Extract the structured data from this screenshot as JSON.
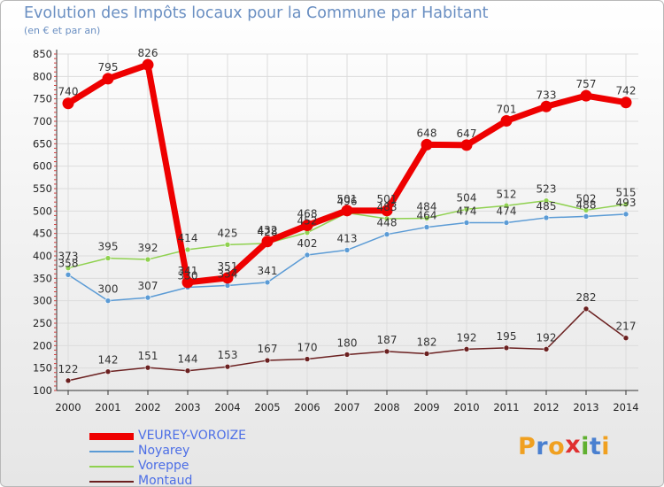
{
  "title": "Evolution des Impôts locaux pour la Commune par Habitant",
  "subtitle": "(en € et par an)",
  "logo_text": "Proxiti",
  "colors": {
    "title": "#6a8fc2",
    "legend_text": "#4c6ee6",
    "grid": "#dcdcdc",
    "axis": "#333333",
    "minor_tick": "#d04040",
    "logo_letters": [
      "#f0a020",
      "#4a80d0",
      "#f0a020",
      "#e03030",
      "#60b030",
      "#4a80d0",
      "#f0a020"
    ]
  },
  "chart_data": {
    "type": "line",
    "title": "Evolution des Impôts locaux pour la Commune par Habitant",
    "subtitle": "(en € et par an)",
    "xlabel": "",
    "ylabel": "",
    "x": [
      "2000",
      "2001",
      "2002",
      "2003",
      "2004",
      "2005",
      "2006",
      "2007",
      "2008",
      "2009",
      "2010",
      "2011",
      "2012",
      "2013",
      "2014"
    ],
    "ylim": [
      100,
      850
    ],
    "yticks": [
      "100",
      "150",
      "200",
      "250",
      "300",
      "350",
      "400",
      "450",
      "500",
      "550",
      "600",
      "650",
      "700",
      "750",
      "800",
      "850"
    ],
    "grid": true,
    "legend_position": "bottom-left",
    "series": [
      {
        "name": "VEUREY-VOROIZE",
        "color": "#ee0000",
        "bold": true,
        "values": [
          740,
          795,
          826,
          341,
          351,
          432,
          468,
          501,
          501,
          648,
          647,
          701,
          733,
          757,
          742
        ]
      },
      {
        "name": "Noyarey",
        "color": "#5b9bd5",
        "bold": false,
        "values": [
          358,
          300,
          307,
          330,
          334,
          341,
          402,
          413,
          448,
          464,
          474,
          474,
          485,
          488,
          493
        ]
      },
      {
        "name": "Voreppe",
        "color": "#8fd14f",
        "bold": false,
        "values": [
          373,
          395,
          392,
          414,
          425,
          428,
          452,
          496,
          483,
          484,
          504,
          512,
          523,
          502,
          515
        ]
      },
      {
        "name": "Montaud",
        "color": "#6b2020",
        "bold": false,
        "values": [
          122,
          142,
          151,
          144,
          153,
          167,
          170,
          180,
          187,
          182,
          192,
          195,
          192,
          282,
          217
        ]
      }
    ]
  }
}
